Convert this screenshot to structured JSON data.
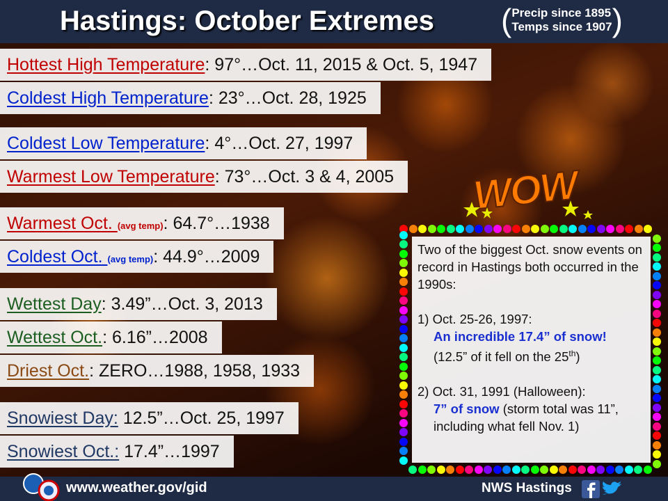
{
  "header": {
    "title": "Hastings: October Extremes",
    "note_lines": [
      "Precip since 1895",
      "Temps since 1907"
    ]
  },
  "groups": [
    [
      {
        "label": "Hottest High Temperature",
        "value": ": 97°…Oct. 11, 2015 & Oct. 5, 1947"
      },
      {
        "label": "Coldest High Temperature",
        "value": ": 23°…Oct. 28, 1925"
      }
    ],
    [
      {
        "label": "Coldest Low Temperature",
        "value": ": 4°…Oct. 27, 1997"
      },
      {
        "label": "Warmest Low Temperature",
        "value": ": 73°…Oct. 3 & 4, 2005"
      }
    ],
    [
      {
        "label": "Warmest Oct. ",
        "qualifier": "(avg temp)",
        "value": ": 64.7°…1938"
      },
      {
        "label": "Coldest Oct. ",
        "qualifier": "(avg temp)",
        "value": ": 44.9°…2009"
      }
    ],
    [
      {
        "label": "Wettest Day",
        "value": ": 3.49”…Oct. 3, 2013"
      },
      {
        "label": "Wettest Oct.",
        "value": ": 6.16”…2008"
      },
      {
        "label": "Driest Oct.",
        "value": ": ZERO…1988, 1958, 1933"
      }
    ],
    [
      {
        "label": "Snowiest Day:",
        "value": " 12.5”…Oct. 25, 1997"
      },
      {
        "label": "Snowiest Oct.:",
        "value": " 17.4”…1997"
      }
    ]
  ],
  "wow": "WOW",
  "snow_box": {
    "intro": "Two of the biggest Oct. snow events on record in Hastings both occurred in the 1990s:",
    "events": [
      {
        "date": "1) Oct. 25-26, 1997:",
        "highlight": "An incredible 17.4” of snow!",
        "detail": "(12.5” of it fell on the 25",
        "detail_sup": "th",
        "detail_end": ")"
      },
      {
        "date": "2) Oct. 31, 1991 (Halloween):",
        "highlight": "7” of snow",
        "detail": "(storm total was 11”, including what fell Nov. 1)"
      }
    ]
  },
  "footer": {
    "url": "www.weather.gov/gid",
    "office": "NWS Hastings"
  }
}
